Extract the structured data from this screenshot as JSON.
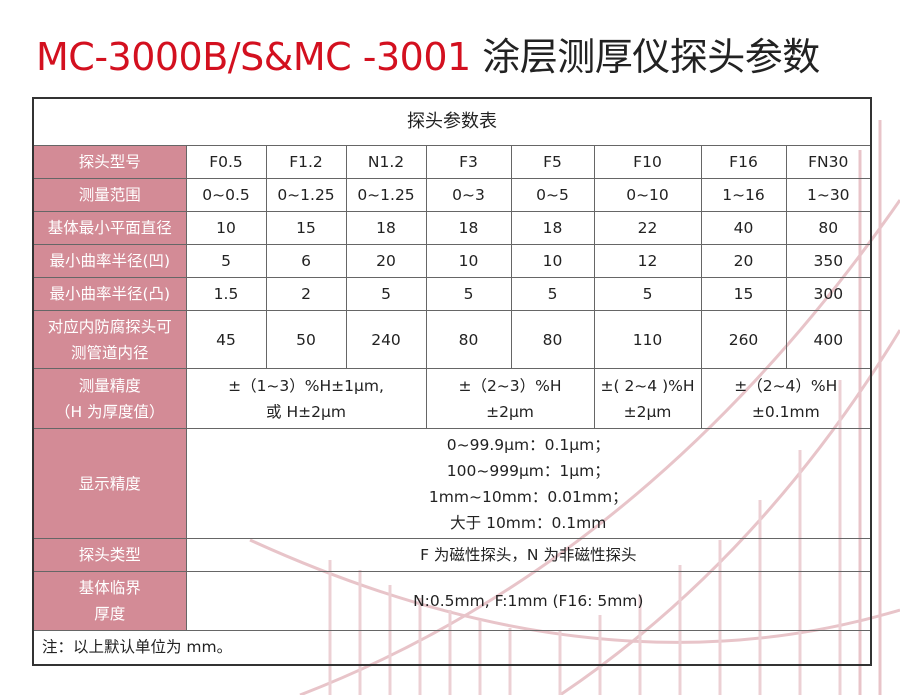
{
  "title": {
    "en": "MC-3000B/S&MC -3001",
    "cn": "涂层测厚仪探头参数"
  },
  "colors": {
    "title_red": "#d3101f",
    "label_bg": "#d38b96",
    "watermark": "#e8c4c9"
  },
  "table": {
    "caption": "探头参数表",
    "header": {
      "label": "探头型号",
      "cols": [
        "F0.5",
        "F1.2",
        "N1.2",
        "F3",
        "F5",
        "F10",
        "F16",
        "FN30"
      ]
    },
    "rows": [
      {
        "label": "测量范围",
        "values": [
          "0~0.5",
          "0~1.25",
          "0~1.25",
          "0~3",
          "0~5",
          "0~10",
          "1~16",
          "1~30"
        ]
      },
      {
        "label": "基体最小平面直径",
        "values": [
          "10",
          "15",
          "18",
          "18",
          "18",
          "22",
          "40",
          "80"
        ]
      },
      {
        "label": "最小曲率半径(凹)",
        "values": [
          "5",
          "6",
          "20",
          "10",
          "10",
          "12",
          "20",
          "350"
        ]
      },
      {
        "label": "最小曲率半径(凸)",
        "values": [
          "1.5",
          "2",
          "5",
          "5",
          "5",
          "5",
          "15",
          "300"
        ]
      },
      {
        "label": [
          "对应内防腐探头可",
          "测管道内径"
        ],
        "values": [
          "45",
          "50",
          "240",
          "80",
          "80",
          "110",
          "260",
          "400"
        ]
      }
    ],
    "accuracy": {
      "label": [
        "测量精度",
        "（H 为厚度值）"
      ],
      "groups": [
        [
          "±（1~3）%H±1μm,",
          "或 H±2μm"
        ],
        [
          "±（2~3）%H",
          "±2μm"
        ],
        [
          "±( 2~4 )%H",
          "±2μm"
        ],
        [
          "±（2~4）%H",
          "±0.1mm"
        ]
      ]
    },
    "display": {
      "label": "显示精度",
      "lines": [
        "0~99.9μm：0.1μm；",
        "100~999μm：1μm；",
        "1mm~10mm：0.01mm；",
        "大于 10mm：0.1mm"
      ]
    },
    "probe_type": {
      "label": "探头类型",
      "value": "F 为磁性探头，N 为非磁性探头"
    },
    "critical": {
      "label": [
        "基体临界",
        "厚度"
      ],
      "value": "N:0.5mm,  F:1mm (F16: 5mm)"
    },
    "note": "注：以上默认单位为 mm。"
  }
}
